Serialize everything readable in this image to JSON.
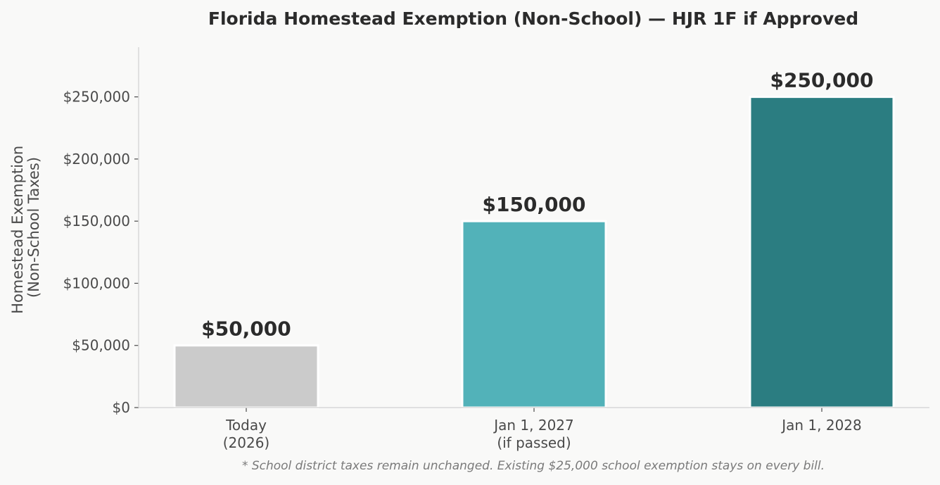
{
  "chart_data": {
    "type": "bar",
    "title": "Florida Homestead Exemption (Non-School) — HJR 1F if Approved",
    "ylabel_lines": [
      "Homestead Exemption",
      "(Non-School Taxes)"
    ],
    "xlabel": "",
    "categories": [
      {
        "lines": [
          "Today",
          "(2026)"
        ]
      },
      {
        "lines": [
          "Jan 1, 2027",
          "(if passed)"
        ]
      },
      {
        "lines": [
          "Jan 1, 2028"
        ]
      }
    ],
    "values": [
      50000,
      150000,
      250000
    ],
    "data_labels": [
      "$50,000",
      "$150,000",
      "$250,000"
    ],
    "bar_colors": [
      "#cbcbcb",
      "#52b2b9",
      "#2b7d81"
    ],
    "yticks": [
      0,
      50000,
      100000,
      150000,
      200000,
      250000
    ],
    "ytick_labels": [
      "$0",
      "$50,000",
      "$100,000",
      "$150,000",
      "$200,000",
      "$250,000"
    ],
    "ylim": [
      0,
      290000
    ],
    "grid": false,
    "legend": "none",
    "footnote": "* School district taxes remain unchanged. Existing $25,000 school exemption stays on every bill."
  }
}
